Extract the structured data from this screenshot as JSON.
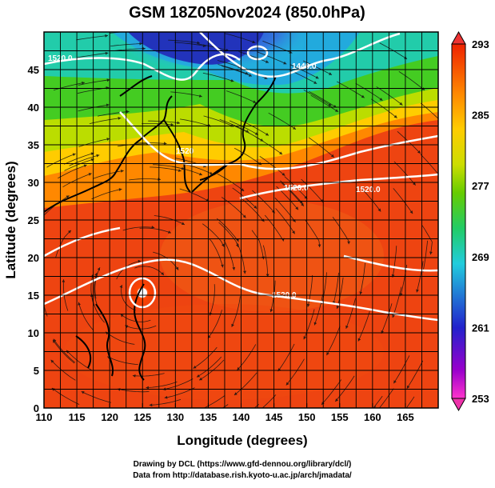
{
  "title": "GSM 18Z05Nov2024 (850.0hPa)",
  "axes": {
    "xlabel": "Longitude (degrees)",
    "ylabel": "Latitude  (degrees)",
    "x_range": [
      110,
      170
    ],
    "y_range": [
      0,
      50
    ],
    "x_ticks": [
      "110",
      "115",
      "120",
      "125",
      "130",
      "135",
      "140",
      "145",
      "150",
      "155",
      "160",
      "165"
    ],
    "y_ticks": [
      "0",
      "5",
      "10",
      "15",
      "20",
      "25",
      "30",
      "35",
      "40",
      "45"
    ],
    "grid": true
  },
  "colorbar": {
    "ticks": [
      "253",
      "261",
      "269",
      "277",
      "285",
      "293"
    ],
    "range": [
      253,
      293
    ],
    "colors": [
      "#ff33cc",
      "#9900cc",
      "#2222cc",
      "#1f7fe0",
      "#22ccdd",
      "#22cc66",
      "#66cc00",
      "#ccdd00",
      "#ffcc00",
      "#ff9900",
      "#ff5500",
      "#ee2200"
    ]
  },
  "contours": {
    "labels": [
      "1520.0",
      "1440.0",
      "1520",
      "1520.0",
      "1520.0",
      "1520.0"
    ]
  },
  "credits": {
    "line1": "Drawing by DCL (https://www.gfd-dennou.org/library/dcl/)",
    "line2": "Data from http://database.rish.kyoto-u.ac.jp/arch/jmadata/"
  }
}
